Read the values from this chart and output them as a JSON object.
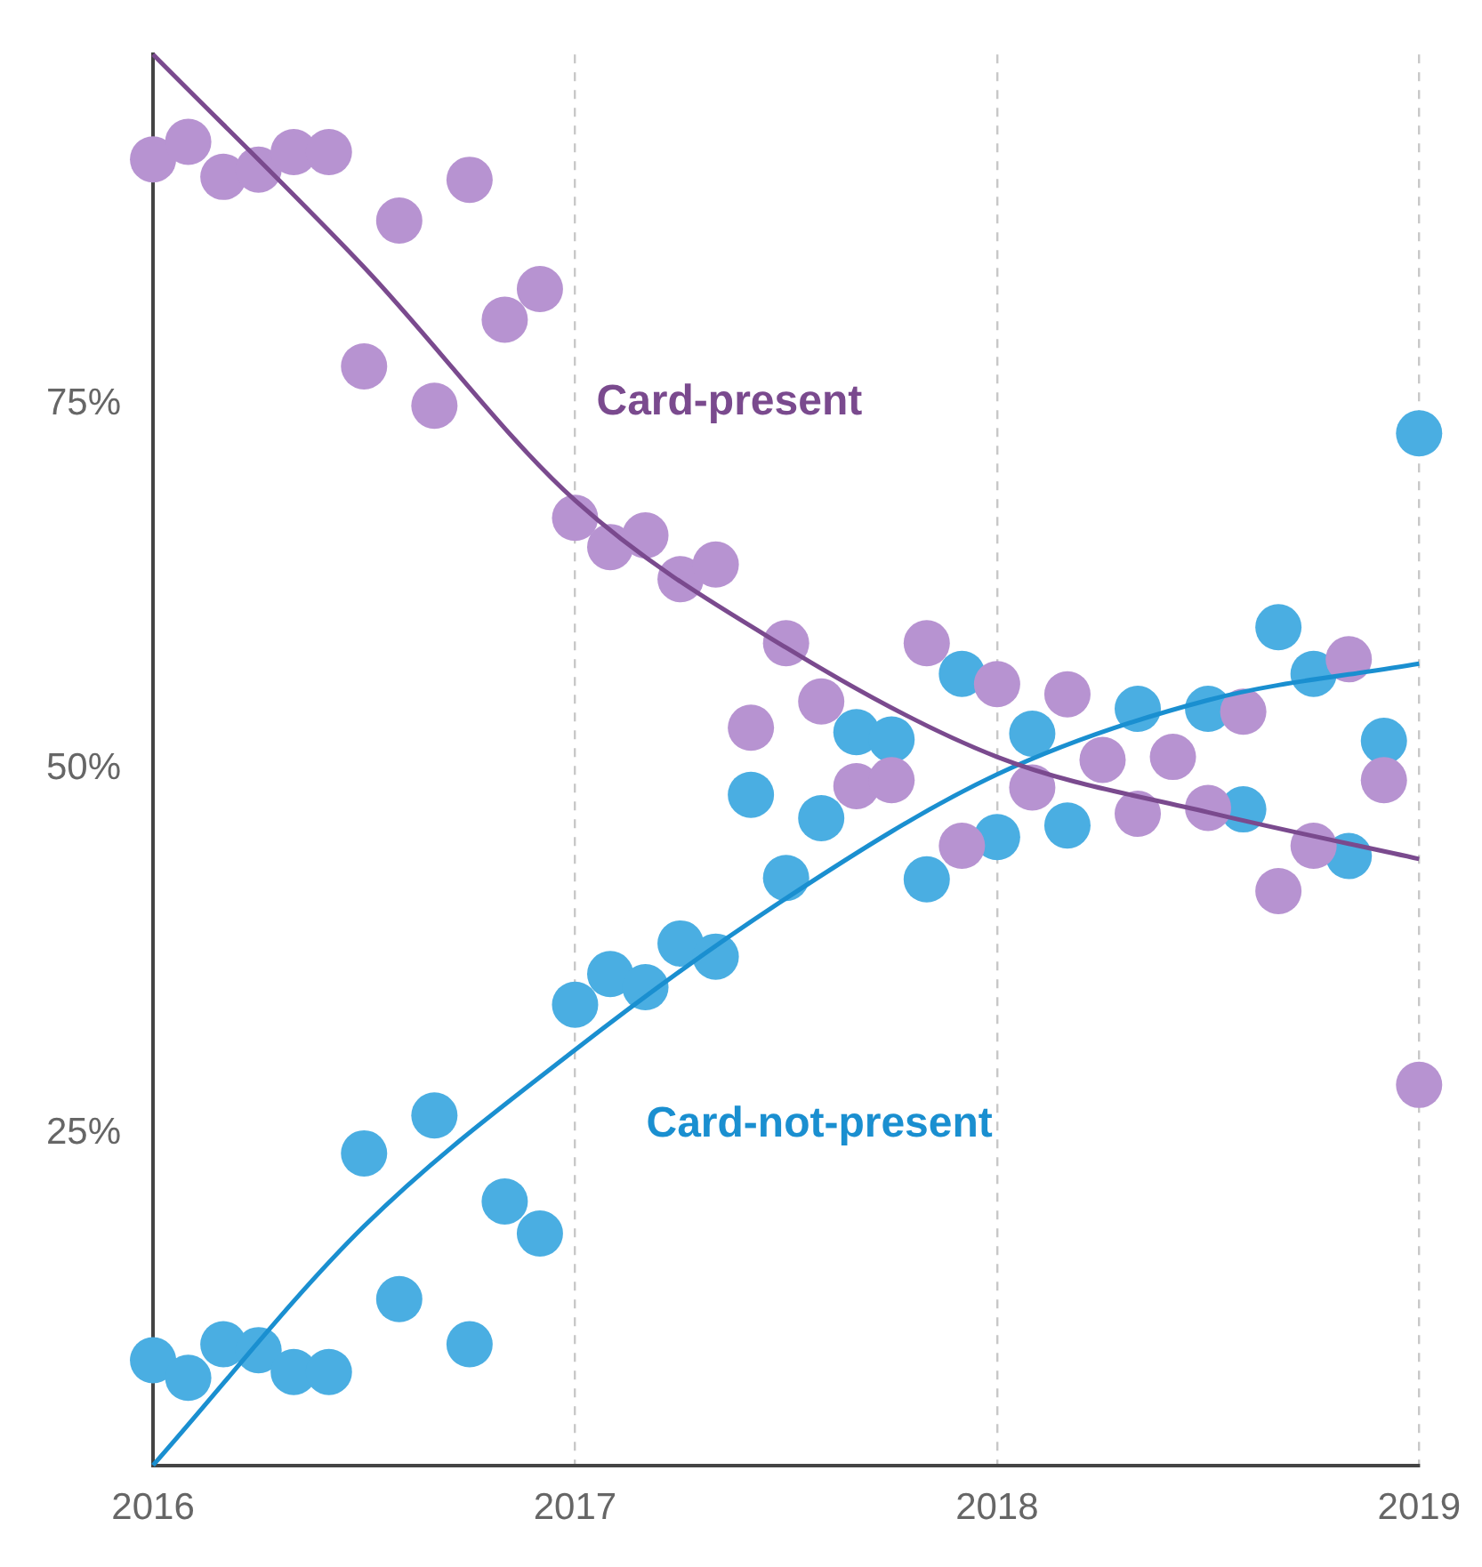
{
  "chart_data": {
    "type": "scatter",
    "xlim": [
      "2016",
      "2019"
    ],
    "xticks": [
      {
        "value": "2016",
        "label": "2016"
      },
      {
        "value": "2017",
        "label": "2017"
      },
      {
        "value": "2018",
        "label": "2018"
      },
      {
        "value": "2019",
        "label": "2019"
      }
    ],
    "ylim": [
      2.2,
      99
    ],
    "yticks": [
      {
        "value": 25,
        "label": "25%"
      },
      {
        "value": 50,
        "label": "50%"
      },
      {
        "value": 75,
        "label": "75%"
      }
    ],
    "grid": "x",
    "legend": false,
    "marker": "circle",
    "series": [
      {
        "type": "scatter",
        "color": "#b793d1",
        "x": [
          "2016-01",
          "2016-02",
          "2016-03",
          "2016-04",
          "2016-05",
          "2016-06",
          "2016-07",
          "2016-08",
          "2016-09",
          "2016-10",
          "2016-11",
          "2016-12",
          "2017-01",
          "2017-02",
          "2017-03",
          "2017-04",
          "2017-05",
          "2017-06",
          "2017-07",
          "2017-08",
          "2017-09",
          "2017-10",
          "2017-11",
          "2017-12",
          "2018-01",
          "2018-02",
          "2018-03",
          "2018-04",
          "2018-05",
          "2018-06",
          "2018-07",
          "2018-08",
          "2018-09",
          "2018-10",
          "2018-11",
          "2018-12",
          "2019-01"
        ],
        "values": [
          91.8,
          93.0,
          90.6,
          91.1,
          92.3,
          92.3,
          77.6,
          87.6,
          74.9,
          90.4,
          80.8,
          82.9,
          67.2,
          65.2,
          66.0,
          63.0,
          64.0,
          52.8,
          58.6,
          54.6,
          48.8,
          49.2,
          58.6,
          44.7,
          55.8,
          48.7,
          55.1,
          50.6,
          46.9,
          50.8,
          47.3,
          53.9,
          41.6,
          44.7,
          57.5,
          49.2,
          28.3
        ]
      },
      {
        "type": "scatter",
        "color": "#4aaee2",
        "x": [
          "2016-01",
          "2016-02",
          "2016-03",
          "2016-04",
          "2016-05",
          "2016-06",
          "2016-07",
          "2016-08",
          "2016-09",
          "2016-10",
          "2016-11",
          "2016-12",
          "2017-01",
          "2017-02",
          "2017-03",
          "2017-04",
          "2017-05",
          "2017-06",
          "2017-07",
          "2017-08",
          "2017-09",
          "2017-10",
          "2017-11",
          "2017-12",
          "2018-01",
          "2018-02",
          "2018-03",
          "2018-04",
          "2018-05",
          "2018-06",
          "2018-07",
          "2018-08",
          "2018-09",
          "2018-10",
          "2018-11",
          "2018-12",
          "2019-01"
        ],
        "values": [
          9.4,
          8.2,
          10.5,
          10.1,
          8.6,
          8.6,
          23.6,
          13.6,
          26.2,
          10.5,
          20.3,
          18.1,
          33.8,
          35.9,
          35.0,
          38.0,
          37.1,
          48.2,
          42.5,
          46.6,
          52.5,
          52.0,
          42.4,
          56.5,
          45.3,
          52.4,
          46.1,
          null,
          54.1,
          null,
          54.1,
          47.2,
          59.7,
          56.5,
          44.0,
          51.9,
          73.0
        ]
      },
      {
        "type": "line",
        "name": "Card-present",
        "color": "#7a4a8e",
        "marker": "none",
        "x": [
          "2016-01",
          "2016-07",
          "2017-01",
          "2017-07",
          "2018-01",
          "2018-07",
          "2019-01"
        ],
        "values": [
          99,
          84.4,
          68.4,
          58.3,
          50.8,
          47.0,
          43.8
        ]
      },
      {
        "type": "line",
        "name": "Card-not-present",
        "color": "#1a8fd0",
        "marker": "none",
        "x": [
          "2016-01",
          "2016-07",
          "2017-01",
          "2017-07",
          "2018-01",
          "2018-07",
          "2019-01"
        ],
        "values": [
          2.2,
          18.6,
          30.7,
          41.1,
          49.6,
          54.7,
          57.2
        ]
      }
    ]
  }
}
